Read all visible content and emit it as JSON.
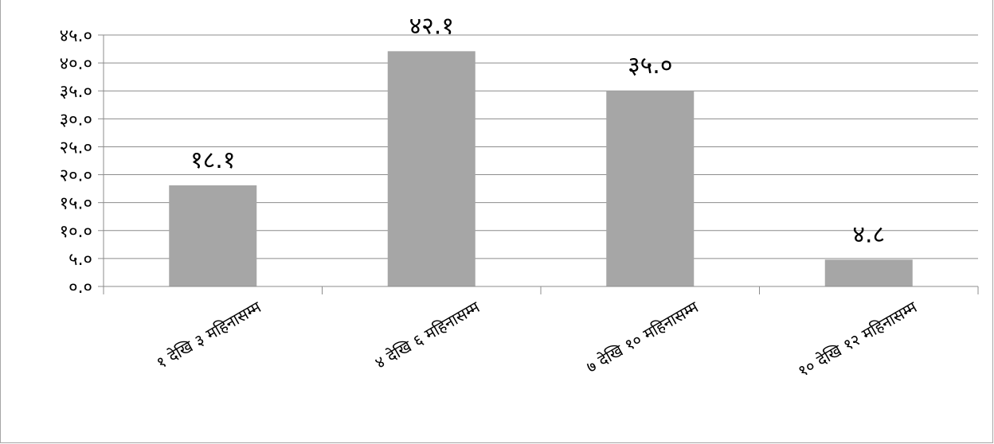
{
  "chart_data": {
    "type": "bar",
    "categories": [
      "१ देखि ३ महिनासम्म",
      "४ देखि ६ महिनासम्म",
      "७ देखि १० महिनासम्म",
      "१० देखि १२ महिनासम्म"
    ],
    "values": [
      18.1,
      42.1,
      35.0,
      4.8
    ],
    "data_labels": [
      "१८.१",
      "४२.१",
      "३५.०",
      "४.८"
    ],
    "y_ticks": [
      0,
      5,
      10,
      15,
      20,
      25,
      30,
      35,
      40,
      45
    ],
    "y_tick_labels": [
      "०.०",
      "५.०",
      "१०.०",
      "१५.०",
      "२०.०",
      "२५.०",
      "३०.०",
      "३५.०",
      "४०.०",
      "४५.०"
    ],
    "ylim": [
      0,
      45
    ],
    "grid": true,
    "legend": "none",
    "colors": {
      "bar": "#a6a6a6",
      "grid": "#8c8c8c",
      "axis": "#8c8c8c"
    }
  }
}
